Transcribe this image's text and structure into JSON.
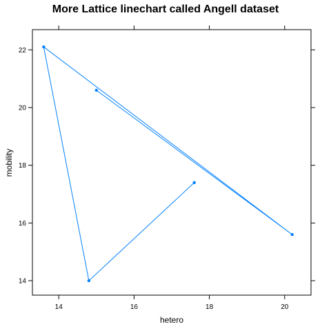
{
  "chart_data": {
    "type": "line",
    "title": "More Lattice linechart called Angell dataset",
    "xlabel": "hetero",
    "ylabel": "mobility",
    "xlim": [
      13.3,
      20.7
    ],
    "ylim": [
      13.5,
      22.7
    ],
    "xticks": [
      14,
      16,
      18,
      20
    ],
    "yticks": [
      14,
      16,
      18,
      20,
      22
    ],
    "x_tick_labels": [
      "14",
      "16",
      "18",
      "20"
    ],
    "y_tick_labels": [
      "14",
      "16",
      "18",
      "20",
      "22"
    ],
    "grid": false,
    "legend": "none",
    "series": [
      {
        "color": "#0080ff",
        "points": [
          {
            "x": 17.6,
            "y": 17.4
          },
          {
            "x": 14.8,
            "y": 14.0
          },
          {
            "x": 13.6,
            "y": 22.1
          },
          {
            "x": 20.2,
            "y": 15.6
          },
          {
            "x": 15.0,
            "y": 20.6
          }
        ]
      }
    ]
  }
}
